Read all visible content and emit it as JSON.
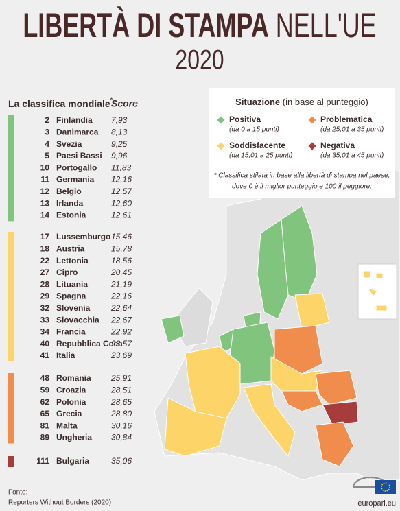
{
  "header": {
    "title_bold": "LIBERTÀ DI STAMPA",
    "title_light": "NELL'UE",
    "year": "2020"
  },
  "ranking": {
    "heading": "La classifica mondiale",
    "asterisk": "*",
    "score_heading": "Score",
    "groups": [
      {
        "color": "#80c47e",
        "rows": [
          [
            "2",
            "Finlandia",
            "7,93"
          ],
          [
            "3",
            "Danimarca",
            "8,13"
          ],
          [
            "4",
            "Svezia",
            "9,25"
          ],
          [
            "5",
            "Paesi Bassi",
            "9,96"
          ],
          [
            "10",
            "Portogallo",
            "11,83"
          ],
          [
            "11",
            "Germania",
            "12,16"
          ],
          [
            "12",
            "Belgio",
            "12,57"
          ],
          [
            "13",
            "Irlanda",
            "12,60"
          ],
          [
            "14",
            "Estonia",
            "12,61"
          ]
        ]
      },
      {
        "color": "#fdd467",
        "rows": [
          [
            "17",
            "Lussemburgo",
            "15,46"
          ],
          [
            "18",
            "Austria",
            "15,78"
          ],
          [
            "22",
            "Lettonia",
            "18,56"
          ],
          [
            "27",
            "Cipro",
            "20,45"
          ],
          [
            "28",
            "Lituania",
            "21,19"
          ],
          [
            "29",
            "Spagna",
            "22,16"
          ],
          [
            "32",
            "Slovenia",
            "22,64"
          ],
          [
            "33",
            "Slovacchia",
            "22,67"
          ],
          [
            "34",
            "Francia",
            "22,92"
          ],
          [
            "40",
            "Repubblica Ceca",
            "23,57"
          ],
          [
            "41",
            "Italia",
            "23,69"
          ]
        ]
      },
      {
        "color": "#f08c4c",
        "rows": [
          [
            "48",
            "Romania",
            "25,91"
          ],
          [
            "59",
            "Croazia",
            "28,51"
          ],
          [
            "62",
            "Polonia",
            "28,65"
          ],
          [
            "65",
            "Grecia",
            "28,80"
          ],
          [
            "81",
            "Malta",
            "30,16"
          ],
          [
            "89",
            "Ungheria",
            "30,84"
          ]
        ]
      },
      {
        "color": "#a63c3c",
        "rows": [
          [
            "111",
            "Bulgaria",
            "35,06"
          ]
        ]
      }
    ]
  },
  "legend": {
    "title": "Situazione",
    "title_note": "(in base al punteggio)",
    "items": [
      {
        "label": "Positiva",
        "range": "(da 0 a 15 punti)",
        "color": "#80c47e"
      },
      {
        "label": "Soddisfacente",
        "range": "(da 15,01 a 25 punti)",
        "color": "#fdd467"
      },
      {
        "label": "Problematica",
        "range": "(da 25,01 a 35 punti)",
        "color": "#f08c4c"
      },
      {
        "label": "Negativa",
        "range": "(da 35,01 a 45 punti)",
        "color": "#a63c3c"
      }
    ],
    "note_lines": [
      "* Classifica stilata in base alla libertà di stampa nel paese,",
      "dove 0 è il miglior punteggio e 100 il peggiore."
    ]
  },
  "source": {
    "label": "Fonte:",
    "text": "Reporters Without Borders (2020)"
  },
  "brand": "europarl.eu"
}
